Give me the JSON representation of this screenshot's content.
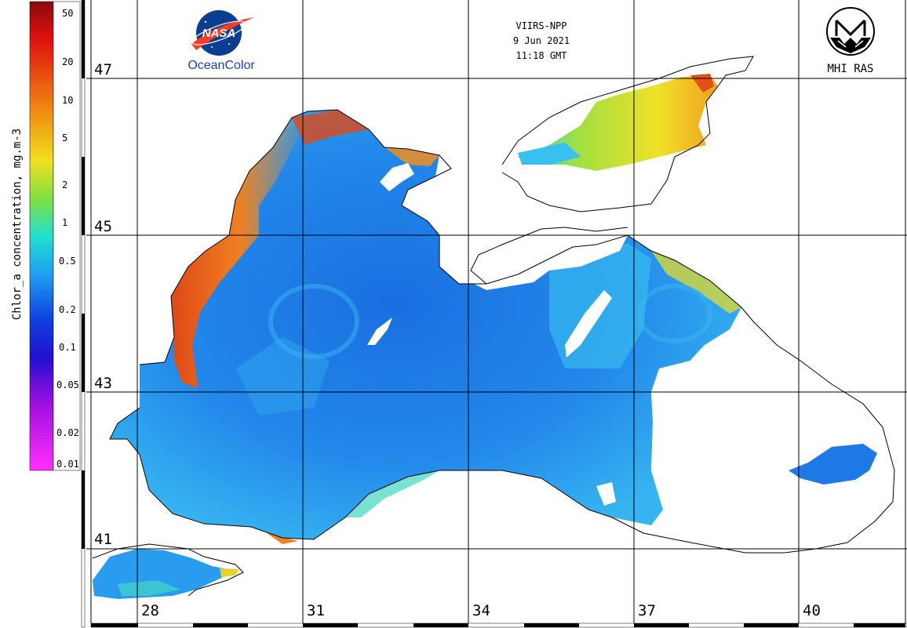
{
  "header": {
    "sensor": "VIIRS-NPP",
    "date": "9 Jun 2021",
    "time": "11:18 GMT"
  },
  "logos": {
    "nasa_text": "NASA",
    "oceancolor_label": "OceanColor",
    "mhi_label": "MHI RAS"
  },
  "colorbar": {
    "title": "Chlor_a concentration, mg.m-3",
    "ticks": [
      "50",
      "20",
      "10",
      "5",
      "2",
      "1",
      "0.5",
      "0.2",
      "0.1",
      "0.05",
      "0.02",
      "0.01"
    ]
  },
  "grid": {
    "latitudes": [
      "47",
      "45",
      "43",
      "41"
    ],
    "longitudes": [
      "28",
      "31",
      "34",
      "37",
      "40"
    ]
  },
  "colors": {
    "sea_low": "#1e7fe6",
    "sea_mid": "#2a9cf0",
    "sea_high": "#40d6f0",
    "coastal_high": "#f07a18",
    "coastal_very_high": "#c8281a",
    "azov": "#e8e030"
  }
}
